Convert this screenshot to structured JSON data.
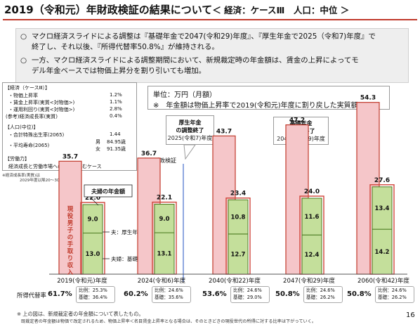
{
  "title": {
    "main": "2019（令和元）年財政検証の結果について",
    "sub": "＜ 経済：ケースⅢ　人口：中位 ＞"
  },
  "summary": [
    {
      "mark": "○",
      "lines": [
        "マクロ経済スライドによる調整は『基礎年金で2047(令和29)年度』、『厚生年金で2025（令和7)年度』で",
        "終了し、それ以後、『所得代替率50.8%』が維持される。"
      ]
    },
    {
      "mark": "○",
      "lines": [
        "一方、マクロ経済スライドによる調整期間において、新規裁定時の年金額は、賃金の上昇によってモ",
        "デル年金ベースでは物価上昇分を割り引いても増加。"
      ]
    }
  ],
  "assumptions": {
    "economy_header": "【経済（ケースⅢ）】",
    "economy": [
      {
        "label": "・物価上昇率",
        "value": "1.2%"
      },
      {
        "label": "・賃金上昇率(実質<対物価>)",
        "value": "1.1%"
      },
      {
        "label": "・運用利回り(実質<対物価>)",
        "value": "2.8%"
      },
      {
        "label": "(参考)経済成長率(実質)",
        "value": "0.4%"
      }
    ],
    "population_header": "【人口(中位)】",
    "fertility_label": "・合計特殊出生率(2065)",
    "fertility_value": "1.44",
    "life_label": "・平均寿命(2065)",
    "life_male": "男",
    "life_male_value": "84.95歳",
    "life_female": "女",
    "life_female_value": "91.35歳",
    "labor_header": "【労働力】",
    "labor_text": "経済成長と労働市場への参加が進むケース",
    "note1": "※経済成長率(実質)は",
    "note2": "2029年度以降20～30年平均"
  },
  "unit_box": {
    "line1": "単位：万円（月額）",
    "line2": "※　年金額は物価上昇率で2019(令和元)年度に割り戻した実質額"
  },
  "callouts": {
    "kosei": {
      "line1": "厚生年金",
      "line2": "の調整終了",
      "line3": "2025(令和7)年度"
    },
    "kiso": {
      "line1": "基礎年金",
      "line2": "の調整終了",
      "line3": "2047(令和29)年度"
    }
  },
  "fiscal_verification_label": "次の財政検証",
  "chart_data": {
    "type": "bar",
    "categories": [
      "2019(令和元)年度",
      "2024(令和6)年度",
      "2040(令和22)年度",
      "2047(令和29)年度",
      "2060(令和42)年度"
    ],
    "series": [
      {
        "name": "現役男子の手取り収入",
        "values": [
          35.7,
          36.7,
          43.7,
          47.2,
          54.3
        ]
      },
      {
        "name": "夫婦の年金額",
        "values": [
          22.0,
          22.1,
          23.4,
          24.0,
          27.6
        ]
      },
      {
        "name": "夫：厚生",
        "values": [
          9.0,
          9.0,
          10.8,
          11.6,
          13.4
        ]
      },
      {
        "name": "夫婦：基礎",
        "values": [
          13.0,
          13.1,
          12.7,
          12.4,
          14.2
        ]
      }
    ],
    "ylim": [
      0,
      60
    ],
    "legend": {
      "earnings": "現役男子の手取り収入",
      "couple": "夫婦の年金額",
      "husband_kosei": "夫：厚生年",
      "couple_kiso": "夫婦：基礎"
    },
    "replacement_label": "所得代替率",
    "replacement": [
      {
        "rate": "61.7%",
        "hirei": "比例：25.3%",
        "kiso": "基礎：36.4%"
      },
      {
        "rate": "60.2%",
        "hirei": "比例：24.6%",
        "kiso": "基礎：35.6%"
      },
      {
        "rate": "53.6%",
        "hirei": "比例：24.6%",
        "kiso": "基礎：29.0%"
      },
      {
        "rate": "50.8%",
        "hirei": "比例：24.6%",
        "kiso": "基礎：26.2%"
      },
      {
        "rate": "50.8%",
        "hirei": "比例：24.6%",
        "kiso": "基礎：26.2%"
      }
    ]
  },
  "footnotes": {
    "line1": "※ 上の図は、新規裁定者の年金額について表したもの。",
    "line2": "既裁定者の年金額は物価で改定されるため、物価上昇率＜名目賃金上昇率となる場合は、そのときどきの現役世代の所得に対する比率は下がっていく。"
  },
  "page_number": "16",
  "colors": {
    "title_rule": "#c0392b",
    "earnings_fill": "#f5c6c9",
    "earnings_stroke": "#c0392b",
    "pension_fill": "#c4df9b",
    "pension_stroke": "#4a7a1f",
    "couple_outline": "#d0453a"
  }
}
